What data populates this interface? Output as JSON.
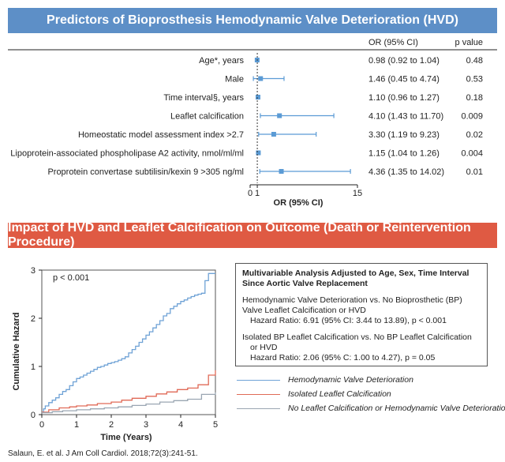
{
  "forest": {
    "title": "Predictors of Bioprosthesis Hemodynamic Valve Deterioration (HVD)",
    "col_or": "OR (95% CI)",
    "col_p": "p value",
    "xlabel": "OR (95% CI)",
    "reference_value": 1,
    "rows": [
      {
        "label": "Age*, years",
        "or_text": "0.98 (0.92 to 1.04)",
        "p": "0.48"
      },
      {
        "label": "Male",
        "or_text": "1.46 (0.45 to 4.74)",
        "p": "0.53"
      },
      {
        "label": "Time interval§, years",
        "or_text": "1.10 (0.96 to 1.27)",
        "p": "0.18"
      },
      {
        "label": "Leaflet calcification",
        "or_text": "4.10 (1.43 to 11.70)",
        "p": "0.009"
      },
      {
        "label": "Homeostatic model assessment index >2.7",
        "or_text": "3.30 (1.19 to 9.23)",
        "p": "0.02"
      },
      {
        "label": "Lipoprotein-associated phospholipase A2  activity, nmol/ml/ml",
        "or_text": "1.15 (1.04 to 1.26)",
        "p": "0.004"
      },
      {
        "label": "Proprotein convertase subtilisin/kexin 9 >305 ng/ml",
        "or_text": "4.36 (1.35 to 14.02)",
        "p": "0.01"
      }
    ]
  },
  "outcome": {
    "title": "Impact of HVD and Leaflet Calcification on Outcome (Death or Reintervention Procedure)",
    "pvalue_text": "p < 0.001",
    "box": {
      "title_line1": "Multivariable Analysis Adjusted to Age, Sex, Time Interval",
      "title_line2": "Since Aortic Valve Replacement",
      "p1_line1": "Hemodynamic Valve Deterioration vs. No Bioprosthetic (BP)",
      "p1_line2": "Valve Leaflet Calcification or HVD",
      "p1_line3": "Hazard Ratio: 6.91 (95% CI: 3.44 to 13.89), p < 0.001",
      "p2_line1": "Isolated BP Leaflet Calcification vs. No BP Leaflet Calcification",
      "p2_line2": "or HVD",
      "p2_line3": "Hazard Ratio: 2.06 (95% C: 1.00 to 4.27), p = 0.05"
    }
  },
  "citation": "Salaun, E. et al. J Am Coll Cardiol. 2018;72(3):241-51.",
  "colors": {
    "blue_banner": "#5d8fc7",
    "red_banner": "#df5a43",
    "marker": "#5b9bd5",
    "hvd": "#6fa2d6",
    "leaflet": "#e06a57",
    "none": "#9aa6b2"
  },
  "chart_data": [
    {
      "type": "forest",
      "title": "Predictors of Bioprosthesis Hemodynamic Valve Deterioration (HVD)",
      "xlabel": "OR (95% CI)",
      "xlim": [
        0,
        15
      ],
      "xticks": [
        0,
        1,
        15
      ],
      "reference_line": 1,
      "categories": [
        "Age*, years",
        "Male",
        "Time interval§, years",
        "Leaflet calcification",
        "Homeostatic model assessment index >2.7",
        "Lipoprotein-associated phospholipase A2  activity, nmol/ml/ml",
        "Proprotein convertase subtilisin/kexin 9 >305 ng/ml"
      ],
      "or": [
        0.98,
        1.46,
        1.1,
        4.1,
        3.3,
        1.15,
        4.36
      ],
      "ci_low": [
        0.92,
        0.45,
        0.96,
        1.43,
        1.19,
        1.04,
        1.35
      ],
      "ci_high": [
        1.04,
        4.74,
        1.27,
        11.7,
        9.23,
        1.26,
        14.02
      ],
      "p": [
        "0.48",
        "0.53",
        "0.18",
        "0.009",
        "0.02",
        "0.004",
        "0.01"
      ]
    },
    {
      "type": "line",
      "step": true,
      "xlabel": "Time (Years)",
      "ylabel": "Cumulative Hazard",
      "xlim": [
        0,
        5
      ],
      "ylim": [
        0,
        3
      ],
      "xticks": [
        0,
        1,
        2,
        3,
        4,
        5
      ],
      "yticks": [
        0,
        1,
        2,
        3
      ],
      "annotation": "p < 0.001",
      "legend_position": "below-right",
      "series": [
        {
          "name": "Hemodynamic Valve Deterioration",
          "color": "#6fa2d6",
          "x": [
            0,
            0.05,
            0.1,
            0.2,
            0.3,
            0.4,
            0.5,
            0.6,
            0.7,
            0.8,
            0.9,
            1.0,
            1.1,
            1.2,
            1.3,
            1.4,
            1.5,
            1.6,
            1.7,
            1.8,
            1.9,
            2.0,
            2.1,
            2.2,
            2.3,
            2.4,
            2.5,
            2.6,
            2.7,
            2.8,
            2.9,
            3.0,
            3.1,
            3.2,
            3.3,
            3.4,
            3.5,
            3.6,
            3.7,
            3.8,
            3.9,
            4.0,
            4.1,
            4.2,
            4.3,
            4.4,
            4.5,
            4.6,
            4.7,
            4.8,
            4.9,
            5.0
          ],
          "y": [
            0.05,
            0.12,
            0.18,
            0.25,
            0.3,
            0.35,
            0.42,
            0.48,
            0.52,
            0.6,
            0.68,
            0.75,
            0.78,
            0.82,
            0.86,
            0.9,
            0.94,
            0.98,
            1.0,
            1.03,
            1.06,
            1.08,
            1.1,
            1.13,
            1.16,
            1.2,
            1.28,
            1.35,
            1.42,
            1.5,
            1.57,
            1.65,
            1.72,
            1.8,
            1.87,
            1.95,
            2.05,
            2.1,
            2.2,
            2.25,
            2.3,
            2.35,
            2.38,
            2.42,
            2.45,
            2.48,
            2.5,
            2.52,
            2.78,
            2.93,
            2.93,
            2.93
          ]
        },
        {
          "name": "Isolated Leaflet Calcification",
          "color": "#e06a57",
          "x": [
            0,
            0.2,
            0.5,
            0.8,
            1.0,
            1.3,
            1.6,
            2.0,
            2.3,
            2.6,
            3.0,
            3.3,
            3.6,
            3.9,
            4.2,
            4.5,
            4.8,
            5.0
          ],
          "y": [
            0.05,
            0.1,
            0.14,
            0.16,
            0.18,
            0.2,
            0.23,
            0.26,
            0.3,
            0.34,
            0.38,
            0.43,
            0.47,
            0.52,
            0.55,
            0.62,
            0.82,
            0.92
          ]
        },
        {
          "name": "No Leaflet Calcification or Hemodynamic Valve Deterioration",
          "color": "#9aa6b2",
          "x": [
            0,
            0.3,
            0.6,
            1.0,
            1.4,
            1.8,
            2.2,
            2.6,
            3.0,
            3.4,
            3.8,
            4.2,
            4.6,
            5.0
          ],
          "y": [
            0.04,
            0.06,
            0.08,
            0.1,
            0.12,
            0.14,
            0.16,
            0.19,
            0.22,
            0.26,
            0.29,
            0.32,
            0.42,
            0.46
          ]
        }
      ]
    }
  ]
}
